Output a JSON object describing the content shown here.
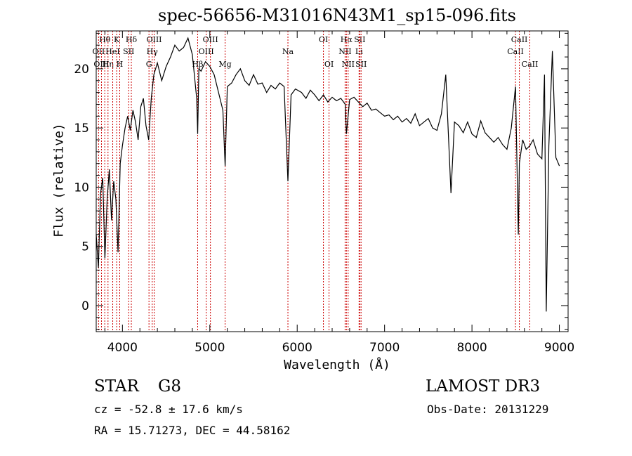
{
  "colors": {
    "foreground": "#000000",
    "line_marker": "#cc0000",
    "background": "#ffffff"
  },
  "footer": {
    "object_class": "STAR",
    "subclass": "G8",
    "survey": "LAMOST DR3",
    "redshift": "cz = -52.8 ± 17.6 km/s",
    "obs_date": "Obs-Date: 20131229",
    "coords": "RA =  15.71273, DEC =  44.58162"
  },
  "chart_data": {
    "type": "line",
    "title": "spec-56656-M31016N43M1_sp15-096.fits",
    "xlabel": "Wavelength (Å)",
    "ylabel": "Flux (relative)",
    "xlim": [
      3700,
      9100
    ],
    "ylim": [
      -2.2,
      23.2
    ],
    "xticks": [
      4000,
      5000,
      6000,
      7000,
      8000,
      9000
    ],
    "yticks": [
      0,
      5,
      10,
      15,
      20
    ],
    "grid": false,
    "line_markers": [
      {
        "label": "Hθ",
        "wavelength": 3798,
        "row": 0
      },
      {
        "label": "OII",
        "wavelength": 3727,
        "row": 1
      },
      {
        "label": "OIII",
        "wavelength": 3760,
        "row": 2
      },
      {
        "label": "Hη",
        "wavelength": 3835,
        "row": 2
      },
      {
        "label": "HeI",
        "wavelength": 3889,
        "row": 1
      },
      {
        "label": "K",
        "wavelength": 3934,
        "row": 0
      },
      {
        "label": "H",
        "wavelength": 3969,
        "row": 2
      },
      {
        "label": "SII",
        "wavelength": 4072,
        "row": 1
      },
      {
        "label": "Hδ",
        "wavelength": 4102,
        "row": 0
      },
      {
        "label": "G",
        "wavelength": 4304,
        "row": 2
      },
      {
        "label": "Hγ",
        "wavelength": 4341,
        "row": 1
      },
      {
        "label": "OIII",
        "wavelength": 4363,
        "row": 0
      },
      {
        "label": "Hβ",
        "wavelength": 4861,
        "row": 2
      },
      {
        "label": "OIII",
        "wavelength": 4959,
        "row": 1
      },
      {
        "label": "OIII",
        "wavelength": 5007,
        "row": 0
      },
      {
        "label": "Mg",
        "wavelength": 5175,
        "row": 2
      },
      {
        "label": "Na",
        "wavelength": 5894,
        "row": 1
      },
      {
        "label": "OI",
        "wavelength": 6300,
        "row": 0
      },
      {
        "label": "OI",
        "wavelength": 6364,
        "row": 2
      },
      {
        "label": "NII",
        "wavelength": 6548,
        "row": 1
      },
      {
        "label": "Hα",
        "wavelength": 6563,
        "row": 0
      },
      {
        "label": "NII",
        "wavelength": 6583,
        "row": 2
      },
      {
        "label": "SII",
        "wavelength": 6716,
        "row": 0
      },
      {
        "label": "Li",
        "wavelength": 6708,
        "row": 1
      },
      {
        "label": "SII",
        "wavelength": 6731,
        "row": 2
      },
      {
        "label": "CaII",
        "wavelength": 8498,
        "row": 1
      },
      {
        "label": "CaII",
        "wavelength": 8542,
        "row": 0
      },
      {
        "label": "CaII",
        "wavelength": 8662,
        "row": 2
      }
    ],
    "series": [
      {
        "x": [
          3700,
          3725,
          3750,
          3775,
          3800,
          3825,
          3850,
          3875,
          3900,
          3925,
          3950,
          3975,
          4000,
          4030,
          4060,
          4090,
          4120,
          4150,
          4180,
          4210,
          4240,
          4270,
          4300,
          4330,
          4360,
          4400,
          4450,
          4500,
          4550,
          4600,
          4650,
          4700,
          4750,
          4800,
          4850,
          4861,
          4875,
          4900,
          4950,
          5000,
          5050,
          5100,
          5150,
          5175,
          5200,
          5250,
          5300,
          5350,
          5400,
          5450,
          5500,
          5550,
          5600,
          5650,
          5700,
          5750,
          5800,
          5850,
          5894,
          5930,
          5980,
          6050,
          6100,
          6150,
          6200,
          6250,
          6300,
          6350,
          6400,
          6450,
          6500,
          6550,
          6563,
          6600,
          6650,
          6700,
          6750,
          6800,
          6850,
          6900,
          6950,
          7000,
          7050,
          7100,
          7150,
          7200,
          7250,
          7300,
          7350,
          7400,
          7450,
          7500,
          7550,
          7600,
          7650,
          7700,
          7730,
          7760,
          7800,
          7850,
          7900,
          7950,
          8000,
          8050,
          8100,
          8150,
          8200,
          8250,
          8300,
          8350,
          8400,
          8450,
          8498,
          8530,
          8542,
          8580,
          8620,
          8662,
          8700,
          8750,
          8800,
          8830,
          8850,
          8880,
          8920,
          8960,
          9000
        ],
        "y": [
          6.0,
          3.2,
          9.5,
          10.8,
          4.0,
          9.0,
          11.5,
          7.2,
          10.5,
          9.0,
          4.5,
          12.0,
          13.5,
          15.0,
          16.0,
          14.8,
          16.5,
          15.5,
          14.0,
          16.8,
          17.5,
          15.2,
          14.0,
          17.5,
          19.5,
          20.5,
          19.0,
          20.2,
          21.0,
          22.0,
          21.5,
          21.8,
          22.6,
          21.2,
          17.5,
          14.5,
          20.0,
          19.8,
          20.6,
          20.2,
          19.5,
          18.0,
          16.5,
          11.8,
          18.5,
          18.8,
          19.5,
          20.0,
          19.0,
          18.6,
          19.5,
          18.7,
          18.8,
          18.0,
          18.6,
          18.3,
          18.8,
          18.5,
          10.5,
          17.8,
          18.3,
          18.0,
          17.5,
          18.2,
          17.8,
          17.3,
          17.8,
          17.2,
          17.6,
          17.3,
          17.5,
          17.0,
          14.5,
          17.4,
          17.6,
          17.2,
          16.8,
          17.1,
          16.5,
          16.6,
          16.3,
          16.0,
          16.1,
          15.7,
          16.0,
          15.5,
          15.8,
          15.4,
          16.2,
          15.2,
          15.5,
          15.8,
          15.0,
          14.8,
          16.2,
          19.5,
          14.5,
          9.5,
          15.5,
          15.2,
          14.6,
          15.5,
          14.5,
          14.2,
          15.6,
          14.6,
          14.2,
          13.8,
          14.2,
          13.6,
          13.2,
          15.0,
          18.5,
          6.0,
          12.0,
          14.0,
          13.2,
          13.5,
          14.0,
          12.8,
          12.4,
          19.5,
          -0.5,
          13.5,
          21.5,
          12.5,
          11.8
        ]
      }
    ]
  }
}
